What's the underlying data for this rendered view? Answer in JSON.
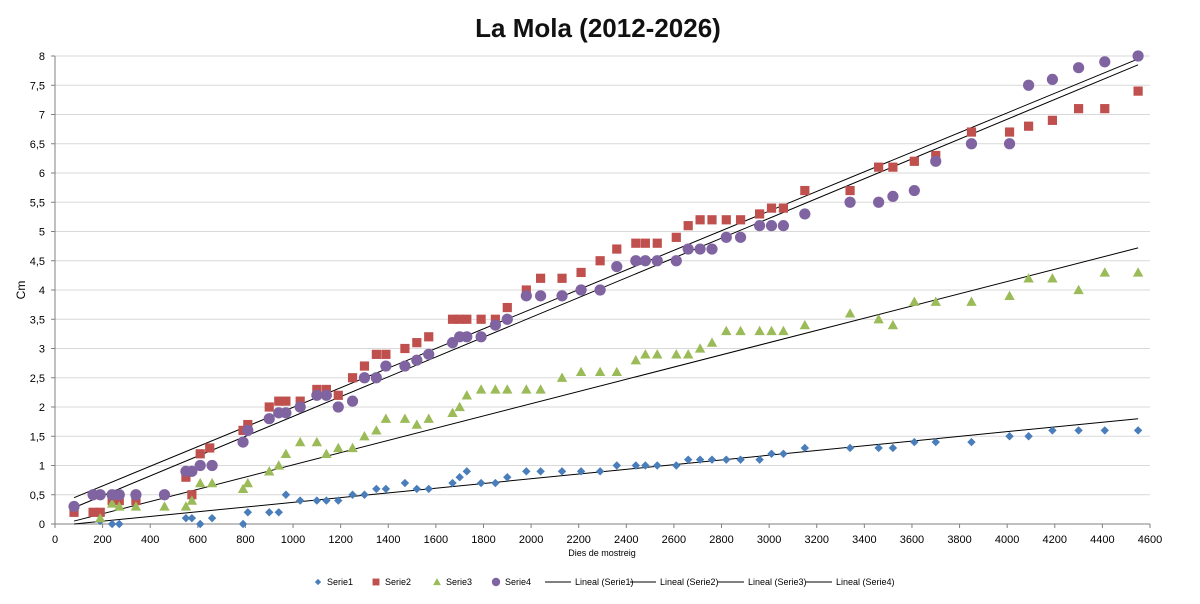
{
  "chart_data": {
    "type": "scatter",
    "title": "La Mola (2012-2026)",
    "xlabel": "Dies de mostreig",
    "ylabel": "Cm",
    "xlim": [
      0,
      4600
    ],
    "ylim": [
      0,
      8
    ],
    "xticks": [
      0,
      200,
      400,
      600,
      800,
      1000,
      1200,
      1400,
      1600,
      1800,
      2000,
      2200,
      2400,
      2600,
      2800,
      3000,
      3200,
      3400,
      3600,
      3800,
      4000,
      4200,
      4400,
      4600
    ],
    "yticks": [
      0,
      0.5,
      1,
      1.5,
      2,
      2.5,
      3,
      3.5,
      4,
      4.5,
      5,
      5.5,
      6,
      6.5,
      7,
      7.5,
      8
    ],
    "ytick_labels": [
      "0",
      "0,5",
      "1",
      "1,5",
      "2",
      "2,5",
      "3",
      "3,5",
      "4",
      "4,5",
      "5",
      "5,5",
      "6",
      "6,5",
      "7",
      "7,5",
      "8"
    ],
    "grid": "horizontal",
    "legend_position": "bottom",
    "series": [
      {
        "name": "Serie1",
        "marker": "diamond",
        "color": "#4a7ebb",
        "x": [
          80,
          190,
          240,
          270,
          550,
          575,
          610,
          660,
          790,
          810,
          900,
          940,
          970,
          1030,
          1100,
          1140,
          1190,
          1250,
          1300,
          1350,
          1390,
          1470,
          1520,
          1570,
          1670,
          1700,
          1730,
          1790,
          1850,
          1900,
          1980,
          2040,
          2130,
          2210,
          2290,
          2360,
          2440,
          2480,
          2530,
          2610,
          2660,
          2710,
          2760,
          2820,
          2880,
          2960,
          3010,
          3060,
          3150,
          3340,
          3460,
          3520,
          3610,
          3700,
          3850,
          4010,
          4090,
          4190,
          4300,
          4410,
          4550
        ],
        "values": [
          0.25,
          0.05,
          0.0,
          0.0,
          0.1,
          0.1,
          0.0,
          0.1,
          0.0,
          0.2,
          0.2,
          0.2,
          0.5,
          0.4,
          0.4,
          0.4,
          0.4,
          0.5,
          0.5,
          0.6,
          0.6,
          0.7,
          0.6,
          0.6,
          0.7,
          0.8,
          0.9,
          0.7,
          0.7,
          0.8,
          0.9,
          0.9,
          0.9,
          0.9,
          0.9,
          1.0,
          1.0,
          1.0,
          1.0,
          1.0,
          1.1,
          1.1,
          1.1,
          1.1,
          1.1,
          1.1,
          1.2,
          1.2,
          1.3,
          1.3,
          1.3,
          1.3,
          1.4,
          1.4,
          1.4,
          1.5,
          1.5,
          1.6,
          1.6,
          1.6,
          1.6
        ]
      },
      {
        "name": "Serie2",
        "marker": "square",
        "color": "#c0504d",
        "x": [
          80,
          160,
          190,
          240,
          270,
          340,
          550,
          575,
          610,
          650,
          790,
          810,
          900,
          940,
          970,
          1030,
          1100,
          1140,
          1190,
          1250,
          1300,
          1350,
          1390,
          1470,
          1520,
          1570,
          1670,
          1700,
          1730,
          1790,
          1850,
          1900,
          1980,
          2040,
          2130,
          2210,
          2290,
          2360,
          2440,
          2480,
          2530,
          2610,
          2660,
          2710,
          2760,
          2820,
          2880,
          2960,
          3010,
          3060,
          3150,
          3340,
          3460,
          3520,
          3610,
          3700,
          3850,
          4010,
          4090,
          4190,
          4300,
          4410,
          4550
        ],
        "values": [
          0.2,
          0.2,
          0.2,
          0.4,
          0.4,
          0.4,
          0.8,
          0.5,
          1.2,
          1.3,
          1.6,
          1.7,
          2.0,
          2.1,
          2.1,
          2.1,
          2.3,
          2.3,
          2.2,
          2.5,
          2.7,
          2.9,
          2.9,
          3.0,
          3.1,
          3.2,
          3.5,
          3.5,
          3.5,
          3.5,
          3.5,
          3.7,
          4.0,
          4.2,
          4.2,
          4.3,
          4.5,
          4.7,
          4.8,
          4.8,
          4.8,
          4.9,
          5.1,
          5.2,
          5.2,
          5.2,
          5.2,
          5.3,
          5.4,
          5.4,
          5.7,
          5.7,
          6.1,
          6.1,
          6.2,
          6.3,
          6.7,
          6.7,
          6.8,
          6.9,
          7.1,
          7.1,
          7.4
        ]
      },
      {
        "name": "Serie3",
        "marker": "triangle",
        "color": "#9bbb59",
        "x": [
          80,
          190,
          240,
          270,
          340,
          460,
          550,
          575,
          610,
          660,
          790,
          810,
          900,
          940,
          970,
          1030,
          1100,
          1140,
          1190,
          1250,
          1300,
          1350,
          1390,
          1470,
          1520,
          1570,
          1670,
          1700,
          1730,
          1790,
          1850,
          1900,
          1980,
          2040,
          2130,
          2210,
          2290,
          2360,
          2440,
          2480,
          2530,
          2610,
          2660,
          2710,
          2760,
          2820,
          2880,
          2960,
          3010,
          3060,
          3150,
          3340,
          3460,
          3520,
          3610,
          3700,
          3850,
          4010,
          4090,
          4190,
          4300,
          4410,
          4550
        ],
        "values": [
          0.3,
          0.1,
          0.35,
          0.3,
          0.3,
          0.3,
          0.3,
          0.4,
          0.7,
          0.7,
          0.6,
          0.7,
          0.9,
          1.0,
          1.2,
          1.4,
          1.4,
          1.2,
          1.3,
          1.3,
          1.5,
          1.6,
          1.8,
          1.8,
          1.7,
          1.8,
          1.9,
          2.0,
          2.2,
          2.3,
          2.3,
          2.3,
          2.3,
          2.3,
          2.5,
          2.6,
          2.6,
          2.6,
          2.8,
          2.9,
          2.9,
          2.9,
          2.9,
          3.0,
          3.1,
          3.3,
          3.3,
          3.3,
          3.3,
          3.3,
          3.4,
          3.6,
          3.5,
          3.4,
          3.8,
          3.8,
          3.8,
          3.9,
          4.2,
          4.2,
          4.0,
          4.3,
          4.3
        ]
      },
      {
        "name": "Serie4",
        "marker": "circle",
        "color": "#8064a2",
        "x": [
          80,
          160,
          190,
          240,
          270,
          340,
          460,
          550,
          575,
          610,
          660,
          790,
          810,
          900,
          940,
          970,
          1030,
          1100,
          1140,
          1190,
          1250,
          1300,
          1350,
          1390,
          1470,
          1520,
          1570,
          1670,
          1700,
          1730,
          1790,
          1850,
          1900,
          1980,
          2040,
          2130,
          2210,
          2290,
          2360,
          2440,
          2480,
          2530,
          2610,
          2660,
          2710,
          2760,
          2820,
          2880,
          2960,
          3010,
          3060,
          3150,
          3340,
          3460,
          3520,
          3610,
          3700,
          3850,
          4010,
          4090,
          4190,
          4300,
          4410,
          4550
        ],
        "values": [
          0.3,
          0.5,
          0.5,
          0.5,
          0.5,
          0.5,
          0.5,
          0.9,
          0.9,
          1.0,
          1.0,
          1.4,
          1.6,
          1.8,
          1.9,
          1.9,
          2.0,
          2.2,
          2.2,
          2.0,
          2.1,
          2.5,
          2.5,
          2.7,
          2.7,
          2.8,
          2.9,
          3.1,
          3.2,
          3.2,
          3.2,
          3.4,
          3.5,
          3.9,
          3.9,
          3.9,
          4.0,
          4.0,
          4.4,
          4.5,
          4.5,
          4.5,
          4.5,
          4.7,
          4.7,
          4.7,
          4.9,
          4.9,
          5.1,
          5.1,
          5.1,
          5.3,
          5.5,
          5.5,
          5.6,
          5.7,
          6.2,
          6.5,
          6.5,
          7.5,
          7.6,
          7.8,
          7.9,
          8.0
        ]
      }
    ],
    "trendlines": [
      {
        "name": "Lineal (Serie1)",
        "x": [
          80,
          4550
        ],
        "values": [
          0.0,
          1.8
        ]
      },
      {
        "name": "Lineal (Serie2)",
        "x": [
          80,
          4550
        ],
        "values": [
          0.45,
          7.95
        ]
      },
      {
        "name": "Lineal (Serie3)",
        "x": [
          80,
          4550
        ],
        "values": [
          0.05,
          4.72
        ]
      },
      {
        "name": "Lineal (Serie4)",
        "x": [
          80,
          4550
        ],
        "values": [
          0.28,
          7.85
        ]
      }
    ],
    "trendline_color": "#000000"
  }
}
